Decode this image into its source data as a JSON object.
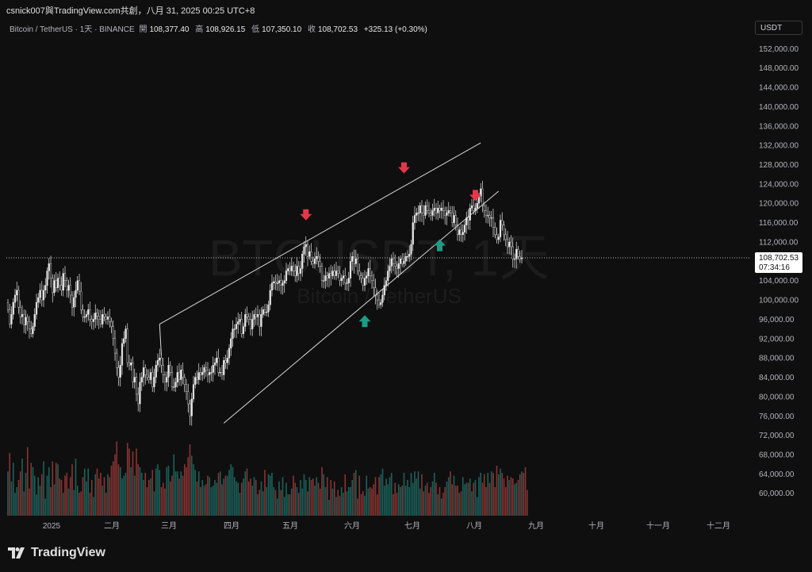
{
  "caption": "csnick007與TradingView.com共創，八月 31, 2025 00:25 UTC+8",
  "legend": {
    "symbol": "Bitcoin / TetherUS · 1天 · BINANCE",
    "open_label": "開",
    "open": "108,377.40",
    "high_label": "高",
    "high": "108,926.15",
    "low_label": "低",
    "low": "107,350.10",
    "close_label": "收",
    "close": "108,702.53",
    "change": "+325.13 (+0.30%)"
  },
  "currency": "USDT",
  "brand": "TradingView",
  "watermark": {
    "ticker": "BTCUSDT, 1天",
    "name": "Bitcoin / TetherUS"
  },
  "colors": {
    "background": "#0f0f0f",
    "up": "#26a69a",
    "down": "#ef5350",
    "candle": "#e6e6e6",
    "arrow_down": "#e5364a",
    "arrow_up": "#1e9c86",
    "trendline": "#d9d9d9"
  },
  "chart_data": {
    "type": "candlestick",
    "y_ticks": [
      152000,
      148000,
      144000,
      140000,
      136000,
      132000,
      128000,
      124000,
      120000,
      116000,
      112000,
      108000,
      104000,
      100000,
      96000,
      92000,
      88000,
      84000,
      80000,
      76000,
      72000,
      68000,
      64000,
      60000
    ],
    "y_tick_labels": [
      "152,000.00",
      "148,000.00",
      "144,000.00",
      "140,000.00",
      "136,000.00",
      "132,000.00",
      "128,000.00",
      "124,000.00",
      "120,000.00",
      "116,000.00",
      "112,000.00",
      "108,000.00",
      "104,000.00",
      "100,000.00",
      "96,000.00",
      "92,000.00",
      "88,000.00",
      "84,000.00",
      "80,000.00",
      "76,000.00",
      "72,000.00",
      "68,000.00",
      "64,000.00",
      "60,000.00"
    ],
    "ylim": [
      57000,
      155500
    ],
    "x_labels": [
      "2025",
      "二月",
      "三月",
      "四月",
      "五月",
      "六月",
      "七月",
      "八月",
      "九月",
      "十月",
      "十一月",
      "十二月"
    ],
    "last_price_label": "108,702.53",
    "last_price": 108702.53,
    "countdown": "07:34:16",
    "closes": [
      98000,
      95000,
      97000,
      99500,
      101000,
      102000,
      98500,
      96500,
      97000,
      94800,
      96400,
      95500,
      94000,
      93000,
      94500,
      97000,
      99500,
      100500,
      102000,
      100000,
      102000,
      103000,
      106000,
      107500,
      104500,
      101500,
      104000,
      102500,
      104500,
      103000,
      102000,
      105500,
      104000,
      102000,
      103000,
      101000,
      98500,
      100500,
      102000,
      104000,
      101800,
      98000,
      96500,
      96500,
      97000,
      98000,
      96000,
      95500,
      96000,
      97300,
      96600,
      96000,
      95000,
      97000,
      96500,
      96000,
      96500,
      95500,
      94500,
      92000,
      89000,
      86000,
      84000,
      86500,
      91000,
      92000,
      94000,
      87000,
      86500,
      87000,
      83000,
      84000,
      80500,
      78500,
      83000,
      84000,
      86000,
      84500,
      84000,
      83500,
      85000,
      82000,
      84000,
      86500,
      87500,
      88000,
      86500,
      84500,
      83000,
      84000,
      86500,
      85000,
      82000,
      82000,
      83000,
      85000,
      83500,
      85500,
      84000,
      82500,
      81000,
      78500,
      76000,
      79500,
      82500,
      84000,
      83500,
      85000,
      84500,
      85000,
      86000,
      85500,
      84500,
      85000,
      85000,
      86500,
      87000,
      88000,
      85000,
      85000,
      84500,
      87500,
      87000,
      88000,
      90000,
      92000,
      94000,
      94000,
      95000,
      95500,
      96000,
      93000,
      94500,
      97000,
      96500,
      96000,
      94000,
      96000,
      97000,
      96500,
      97000,
      94500,
      97000,
      98000,
      97500,
      97500,
      99000,
      102000,
      103500,
      103800,
      103500,
      103500,
      104000,
      103000,
      103500,
      104000,
      106000,
      106500,
      106000,
      107000,
      106000,
      105000,
      107000,
      105500,
      106500,
      109500,
      111000,
      111500,
      109000,
      110000,
      108000,
      107500,
      108500,
      109000,
      108000,
      107000,
      104000,
      104000,
      105000,
      104500,
      105500,
      105000,
      106000,
      105000,
      106000,
      105500,
      104000,
      104500,
      105000,
      103500,
      103500,
      104500,
      108000,
      109000,
      107500,
      108500,
      106000,
      105000,
      104500,
      103000,
      104500,
      105000,
      106500,
      105000,
      104000,
      102500,
      101000,
      100000,
      99000,
      99500,
      101000,
      103000,
      104000,
      106000,
      107000,
      108500,
      107500,
      107000,
      106500,
      107500,
      108500,
      107500,
      108000,
      109000,
      109000,
      109500,
      111500,
      116000,
      117500,
      118000,
      118000,
      119500,
      118000,
      117500,
      119500,
      118500,
      118000,
      117500,
      118500,
      119000,
      118000,
      119000,
      118500,
      119000,
      118500,
      117500,
      118000,
      118500,
      118000,
      116000,
      117500,
      115500,
      113500,
      114500,
      113500,
      114000,
      115500,
      117000,
      116500,
      119000,
      119500,
      118500,
      119000,
      120000,
      121500,
      123000,
      119500,
      118500,
      117500,
      117500,
      117000,
      117000,
      115000,
      113500,
      112500,
      113000,
      116500,
      115500,
      113500,
      112500,
      111000,
      112000,
      111000,
      108500,
      108500,
      110500,
      109000,
      108500,
      108700
    ],
    "volumes": [
      0.31,
      0.44,
      0.24,
      0.37,
      0.16,
      0.2,
      0.25,
      0.31,
      0.4,
      0.17,
      0.3,
      0.48,
      0.19,
      0.37,
      0.34,
      0.28,
      0.15,
      0.27,
      0.21,
      0.29,
      0.38,
      0.12,
      0.28,
      0.34,
      0.2,
      0.38,
      0.22,
      0.37,
      0.36,
      0.26,
      0.25,
      0.16,
      0.28,
      0.3,
      0.19,
      0.27,
      0.36,
      0.18,
      0.4,
      0.21,
      0.16,
      0.17,
      0.27,
      0.33,
      0.24,
      0.33,
      0.16,
      0.25,
      0.13,
      0.29,
      0.33,
      0.26,
      0.3,
      0.21,
      0.27,
      0.16,
      0.29,
      0.27,
      0.35,
      0.38,
      0.43,
      0.52,
      0.36,
      0.34,
      0.26,
      0.28,
      0.3,
      0.51,
      0.47,
      0.34,
      0.45,
      0.28,
      0.47,
      0.36,
      0.34,
      0.3,
      0.25,
      0.3,
      0.2,
      0.25,
      0.26,
      0.32,
      0.17,
      0.33,
      0.36,
      0.32,
      0.2,
      0.23,
      0.19,
      0.34,
      0.35,
      0.24,
      0.28,
      0.43,
      0.31,
      0.31,
      0.26,
      0.31,
      0.28,
      0.36,
      0.34,
      0.41,
      0.5,
      0.42,
      0.36,
      0.32,
      0.24,
      0.31,
      0.2,
      0.25,
      0.21,
      0.22,
      0.28,
      0.27,
      0.2,
      0.21,
      0.25,
      0.23,
      0.3,
      0.31,
      0.22,
      0.26,
      0.28,
      0.28,
      0.32,
      0.36,
      0.34,
      0.27,
      0.24,
      0.23,
      0.16,
      0.23,
      0.26,
      0.31,
      0.33,
      0.24,
      0.26,
      0.21,
      0.27,
      0.25,
      0.15,
      0.18,
      0.24,
      0.17,
      0.32,
      0.2,
      0.29,
      0.28,
      0.3,
      0.2,
      0.18,
      0.12,
      0.24,
      0.18,
      0.27,
      0.13,
      0.23,
      0.15,
      0.15,
      0.19,
      0.28,
      0.23,
      0.2,
      0.16,
      0.25,
      0.19,
      0.29,
      0.25,
      0.17,
      0.27,
      0.25,
      0.26,
      0.21,
      0.27,
      0.23,
      0.19,
      0.34,
      0.29,
      0.2,
      0.27,
      0.11,
      0.25,
      0.19,
      0.24,
      0.13,
      0.18,
      0.14,
      0.2,
      0.16,
      0.29,
      0.17,
      0.2,
      0.2,
      0.25,
      0.3,
      0.32,
      0.12,
      0.28,
      0.15,
      0.17,
      0.14,
      0.28,
      0.19,
      0.2,
      0.19,
      0.22,
      0.27,
      0.15,
      0.27,
      0.29,
      0.33,
      0.21,
      0.26,
      0.22,
      0.27,
      0.3,
      0.15,
      0.23,
      0.16,
      0.22,
      0.2,
      0.21,
      0.3,
      0.21,
      0.25,
      0.2,
      0.3,
      0.23,
      0.31,
      0.26,
      0.31,
      0.19,
      0.29,
      0.17,
      0.21,
      0.23,
      0.16,
      0.2,
      0.24,
      0.3,
      0.23,
      0.15,
      0.2,
      0.12,
      0.16,
      0.2,
      0.24,
      0.27,
      0.31,
      0.22,
      0.28,
      0.21,
      0.21,
      0.16,
      0.17,
      0.27,
      0.22,
      0.23,
      0.23,
      0.26,
      0.17,
      0.23,
      0.25,
      0.13,
      0.27,
      0.3,
      0.23,
      0.29,
      0.2,
      0.3,
      0.23,
      0.31,
      0.3,
      0.2,
      0.35,
      0.29,
      0.33,
      0.3,
      0.26,
      0.2,
      0.28,
      0.25,
      0.27,
      0.26,
      0.22,
      0.23,
      0.25,
      0.29,
      0.31,
      0.3,
      0.34,
      0.18
    ],
    "trendlines": [
      {
        "from": {
          "bar": 85,
          "price": 95000
        },
        "to": {
          "bar": 265,
          "price": 132500
        }
      },
      {
        "from": {
          "bar": 121,
          "price": 74500
        },
        "to": {
          "bar": 275,
          "price": 122500
        }
      },
      {
        "from": {
          "bar": 85,
          "price": 95000
        },
        "to": {
          "bar": 86,
          "price": 88500
        }
      }
    ],
    "markers": [
      {
        "kind": "down",
        "bar": 167,
        "price": 117300
      },
      {
        "kind": "down",
        "bar": 222,
        "price": 127000
      },
      {
        "kind": "down",
        "bar": 262,
        "price": 121300
      },
      {
        "kind": "up",
        "bar": 200,
        "price": 95700
      },
      {
        "kind": "up",
        "bar": 242,
        "price": 111400
      }
    ]
  }
}
